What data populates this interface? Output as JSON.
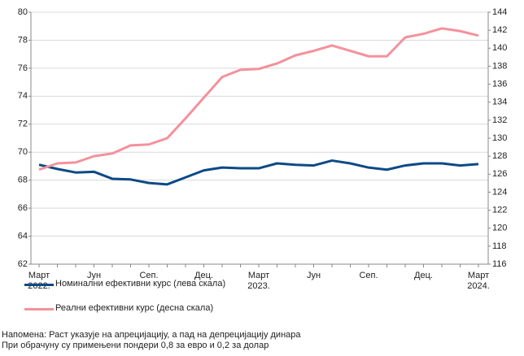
{
  "chart_data": {
    "type": "line",
    "categories": [
      "Март\n2022.",
      null,
      null,
      "Јун",
      null,
      null,
      "Сеп.",
      null,
      null,
      "Дец.",
      null,
      null,
      "Март\n2023.",
      null,
      null,
      "Јун",
      null,
      null,
      "Сеп.",
      null,
      null,
      "Дец.",
      null,
      null,
      "Март\n2024."
    ],
    "series": [
      {
        "name": "Номинални ефективни курс (лева скала)",
        "color": "#0d4a85",
        "axis": "y",
        "values": [
          69.1,
          68.8,
          68.55,
          68.6,
          68.1,
          68.05,
          67.8,
          67.7,
          68.2,
          68.7,
          68.9,
          68.85,
          68.85,
          69.2,
          69.1,
          69.05,
          69.4,
          69.2,
          68.9,
          68.75,
          69.05,
          69.2,
          69.2,
          69.05,
          69.15
        ]
      },
      {
        "name": "Реални ефективни курс (десна скала)",
        "color": "#f4919c",
        "axis": "y2",
        "values": [
          126.5,
          127.2,
          127.3,
          128.0,
          128.3,
          129.2,
          129.3,
          130.0,
          132.2,
          134.5,
          136.8,
          137.6,
          137.7,
          138.3,
          139.2,
          139.7,
          140.3,
          139.7,
          139.1,
          139.1,
          141.2,
          141.6,
          142.2,
          141.9,
          141.4
        ]
      }
    ],
    "ylim": [
      62,
      80
    ],
    "yticks": [
      62,
      64,
      66,
      68,
      70,
      72,
      74,
      76,
      78,
      80
    ],
    "y2lim": [
      116,
      144
    ],
    "y2ticks": [
      116,
      118,
      120,
      122,
      124,
      126,
      128,
      130,
      132,
      134,
      136,
      138,
      140,
      142,
      144
    ],
    "grid": true,
    "notes": [
      "Напомена: Раст указује на апрецијацију, а пад на депрецијацију динара",
      "При обрачуну су примењени пондери 0,8 за евро и 0,2 за долар"
    ]
  }
}
